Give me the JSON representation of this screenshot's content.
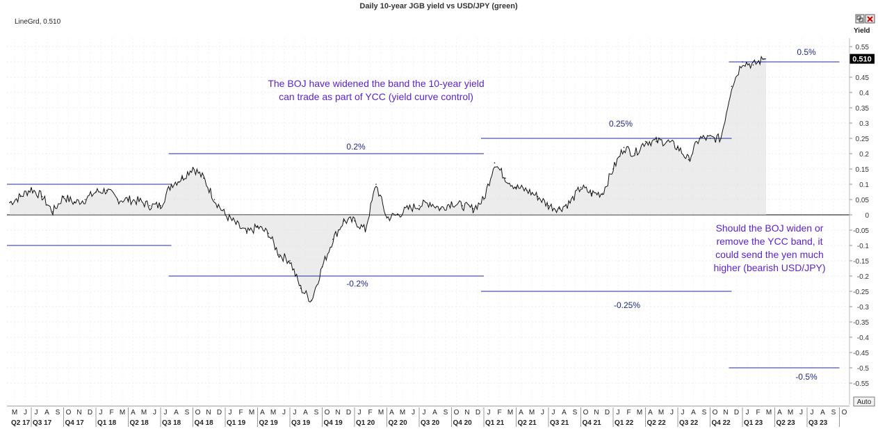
{
  "window": {
    "title": "Daily 10-year JGB yield vs USD/JPY (green)",
    "indicator_label": "LineGrd, 0.510",
    "yaxis_name": "Yield",
    "auto_button": "Auto",
    "icons": [
      "restore-icon",
      "close-icon"
    ]
  },
  "chart_data": {
    "type": "line",
    "title": "Daily 10-year JGB yield vs USD/JPY (green)",
    "ylabel": "Yield",
    "ylim": [
      -0.55,
      0.58
    ],
    "yticks": [
      0.55,
      0.5,
      0.45,
      0.4,
      0.35,
      0.3,
      0.25,
      0.2,
      0.15,
      0.1,
      0.05,
      0,
      -0.05,
      -0.1,
      -0.15,
      -0.2,
      -0.25,
      -0.3,
      -0.35,
      -0.4,
      -0.45,
      -0.5,
      -0.55
    ],
    "current_value": "0.510",
    "x_month_labels": [
      "M",
      "J",
      "J",
      "A",
      "S",
      "O",
      "N",
      "D",
      "J",
      "F",
      "M",
      "A",
      "M",
      "J",
      "J",
      "A",
      "S",
      "O",
      "N",
      "D",
      "J",
      "F",
      "M",
      "A",
      "M",
      "J",
      "J",
      "A",
      "S",
      "O",
      "N",
      "D",
      "J",
      "F",
      "M",
      "A",
      "M",
      "J",
      "J",
      "A",
      "S",
      "O",
      "N",
      "D",
      "J",
      "F",
      "M",
      "A",
      "M",
      "J",
      "J",
      "A",
      "S",
      "O",
      "N",
      "D",
      "J",
      "F",
      "M",
      "A",
      "M",
      "J",
      "J",
      "A",
      "S",
      "O",
      "N",
      "D",
      "J",
      "F",
      "M",
      "A",
      "M",
      "J",
      "J",
      "A",
      "S",
      "O"
    ],
    "x_quarter_labels": [
      "Q2 17",
      "Q3 17",
      "Q4 17",
      "Q1 18",
      "Q2 18",
      "Q3 18",
      "Q4 18",
      "Q1 19",
      "Q2 19",
      "Q3 19",
      "Q4 19",
      "Q1 20",
      "Q2 20",
      "Q3 20",
      "Q4 20",
      "Q1 21",
      "Q2 21",
      "Q3 21",
      "Q4 21",
      "Q1 22",
      "Q2 22",
      "Q3 22",
      "Q4 22",
      "Q1 23",
      "Q2 23",
      "Q3 23"
    ],
    "series": [
      {
        "values": [
          {
            "x": "2017-05",
            "y": 0.04
          },
          {
            "x": "2017-06",
            "y": 0.06
          },
          {
            "x": "2017-07",
            "y": 0.085
          },
          {
            "x": "2017-08",
            "y": 0.06
          },
          {
            "x": "2017-09",
            "y": 0.01
          },
          {
            "x": "2017-10",
            "y": 0.06
          },
          {
            "x": "2017-11",
            "y": 0.04
          },
          {
            "x": "2017-12",
            "y": 0.05
          },
          {
            "x": "2018-01",
            "y": 0.075
          },
          {
            "x": "2018-02",
            "y": 0.08
          },
          {
            "x": "2018-03",
            "y": 0.05
          },
          {
            "x": "2018-04",
            "y": 0.05
          },
          {
            "x": "2018-05",
            "y": 0.045
          },
          {
            "x": "2018-06",
            "y": 0.03
          },
          {
            "x": "2018-07",
            "y": 0.03
          },
          {
            "x": "2018-08",
            "y": 0.1
          },
          {
            "x": "2018-09",
            "y": 0.12
          },
          {
            "x": "2018-10",
            "y": 0.155
          },
          {
            "x": "2018-11",
            "y": 0.12
          },
          {
            "x": "2018-12",
            "y": 0.05
          },
          {
            "x": "2019-01",
            "y": 0.0
          },
          {
            "x": "2019-02",
            "y": -0.03
          },
          {
            "x": "2019-03",
            "y": -0.06
          },
          {
            "x": "2019-04",
            "y": -0.04
          },
          {
            "x": "2019-05",
            "y": -0.06
          },
          {
            "x": "2019-06",
            "y": -0.13
          },
          {
            "x": "2019-07",
            "y": -0.15
          },
          {
            "x": "2019-08",
            "y": -0.24
          },
          {
            "x": "2019-09",
            "y": -0.28
          },
          {
            "x": "2019-10",
            "y": -0.17
          },
          {
            "x": "2019-11",
            "y": -0.08
          },
          {
            "x": "2019-12",
            "y": -0.02
          },
          {
            "x": "2020-01",
            "y": -0.02
          },
          {
            "x": "2020-02",
            "y": -0.05
          },
          {
            "x": "2020-03",
            "y": 0.1
          },
          {
            "x": "2020-04",
            "y": -0.01
          },
          {
            "x": "2020-05",
            "y": 0.0
          },
          {
            "x": "2020-06",
            "y": 0.02
          },
          {
            "x": "2020-07",
            "y": 0.03
          },
          {
            "x": "2020-08",
            "y": 0.04
          },
          {
            "x": "2020-09",
            "y": 0.02
          },
          {
            "x": "2020-10",
            "y": 0.04
          },
          {
            "x": "2020-11",
            "y": 0.03
          },
          {
            "x": "2020-12",
            "y": 0.02
          },
          {
            "x": "2021-01",
            "y": 0.05
          },
          {
            "x": "2021-02",
            "y": 0.17
          },
          {
            "x": "2021-03",
            "y": 0.12
          },
          {
            "x": "2021-04",
            "y": 0.09
          },
          {
            "x": "2021-05",
            "y": 0.08
          },
          {
            "x": "2021-06",
            "y": 0.06
          },
          {
            "x": "2021-07",
            "y": 0.03
          },
          {
            "x": "2021-08",
            "y": 0.02
          },
          {
            "x": "2021-09",
            "y": 0.04
          },
          {
            "x": "2021-10",
            "y": 0.09
          },
          {
            "x": "2021-11",
            "y": 0.07
          },
          {
            "x": "2021-12",
            "y": 0.07
          },
          {
            "x": "2022-01",
            "y": 0.15
          },
          {
            "x": "2022-02",
            "y": 0.22
          },
          {
            "x": "2022-03",
            "y": 0.2
          },
          {
            "x": "2022-04",
            "y": 0.24
          },
          {
            "x": "2022-05",
            "y": 0.24
          },
          {
            "x": "2022-06",
            "y": 0.24
          },
          {
            "x": "2022-07",
            "y": 0.22
          },
          {
            "x": "2022-08",
            "y": 0.18
          },
          {
            "x": "2022-09",
            "y": 0.25
          },
          {
            "x": "2022-10",
            "y": 0.25
          },
          {
            "x": "2022-11",
            "y": 0.25
          },
          {
            "x": "2022-12",
            "y": 0.42
          },
          {
            "x": "2023-01",
            "y": 0.5
          },
          {
            "x": "2023-02",
            "y": 0.49
          },
          {
            "x": "2023-03",
            "y": 0.51
          }
        ]
      }
    ],
    "levels": [
      {
        "label": "",
        "value": 0.1,
        "from": "2017-05",
        "to": "2018-08"
      },
      {
        "label": "",
        "value": -0.1,
        "from": "2017-05",
        "to": "2018-08"
      },
      {
        "label": "0.2%",
        "value": 0.2,
        "from": "2018-08",
        "to": "2021-01"
      },
      {
        "label": "-0.2%",
        "value": -0.2,
        "from": "2018-08",
        "to": "2021-01"
      },
      {
        "label": "0.25%",
        "value": 0.25,
        "from": "2021-01",
        "to": "2022-12"
      },
      {
        "label": "-0.25%",
        "value": -0.25,
        "from": "2021-01",
        "to": "2022-12"
      },
      {
        "label": "0.5%",
        "value": 0.5,
        "from": "2022-12",
        "to": "2023-10"
      },
      {
        "label": "-0.5%",
        "value": -0.5,
        "from": "2022-12",
        "to": "2023-10"
      }
    ],
    "annotations": [
      {
        "lines": [
          "The BOJ have widened the band the 10-year yield",
          "can trade as part of YCC (yield curve control)"
        ]
      },
      {
        "lines": [
          "Should the BOJ widen or",
          "remove the YCC band, it",
          "could send the yen much",
          "higher (bearish USD/JPY)"
        ]
      }
    ],
    "grid": true,
    "legend": "none"
  }
}
